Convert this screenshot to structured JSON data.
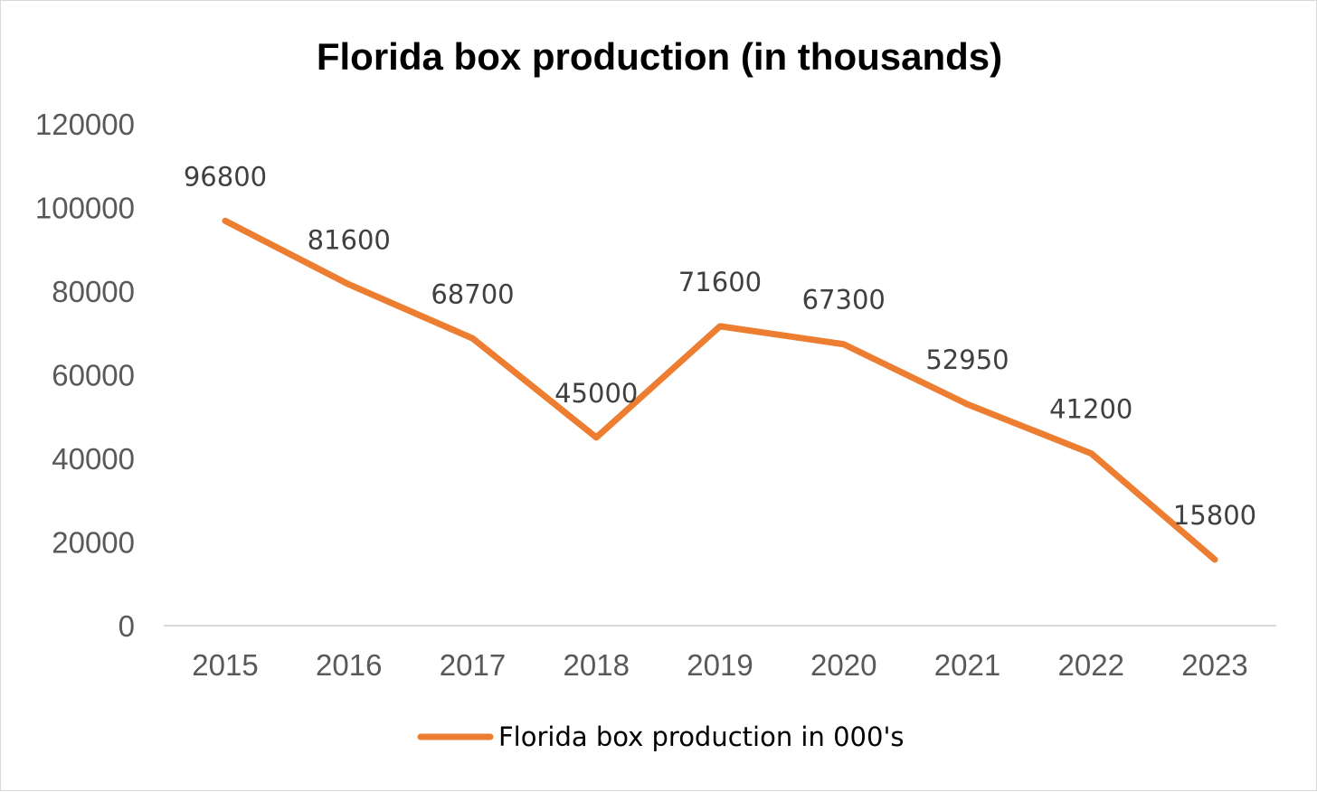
{
  "chart_data": {
    "type": "line",
    "title": "Florida box production (in thousands)",
    "xlabel": "",
    "ylabel": "",
    "categories": [
      "2015",
      "2016",
      "2017",
      "2018",
      "2019",
      "2020",
      "2021",
      "2022",
      "2023"
    ],
    "series": [
      {
        "name": "Florida box production in 000's",
        "values": [
          96800,
          81600,
          68700,
          45000,
          71600,
          67300,
          52950,
          41200,
          15800
        ],
        "color": "#ED7D31"
      }
    ],
    "data_labels": [
      "96800",
      "81600",
      "68700",
      "45000",
      "71600",
      "67300",
      "52950",
      "41200",
      "15800"
    ],
    "ylim": [
      0,
      120000
    ],
    "yticks": [
      "0",
      "20000",
      "40000",
      "60000",
      "80000",
      "100000",
      "120000"
    ],
    "grid": false,
    "legend": "bottom"
  }
}
